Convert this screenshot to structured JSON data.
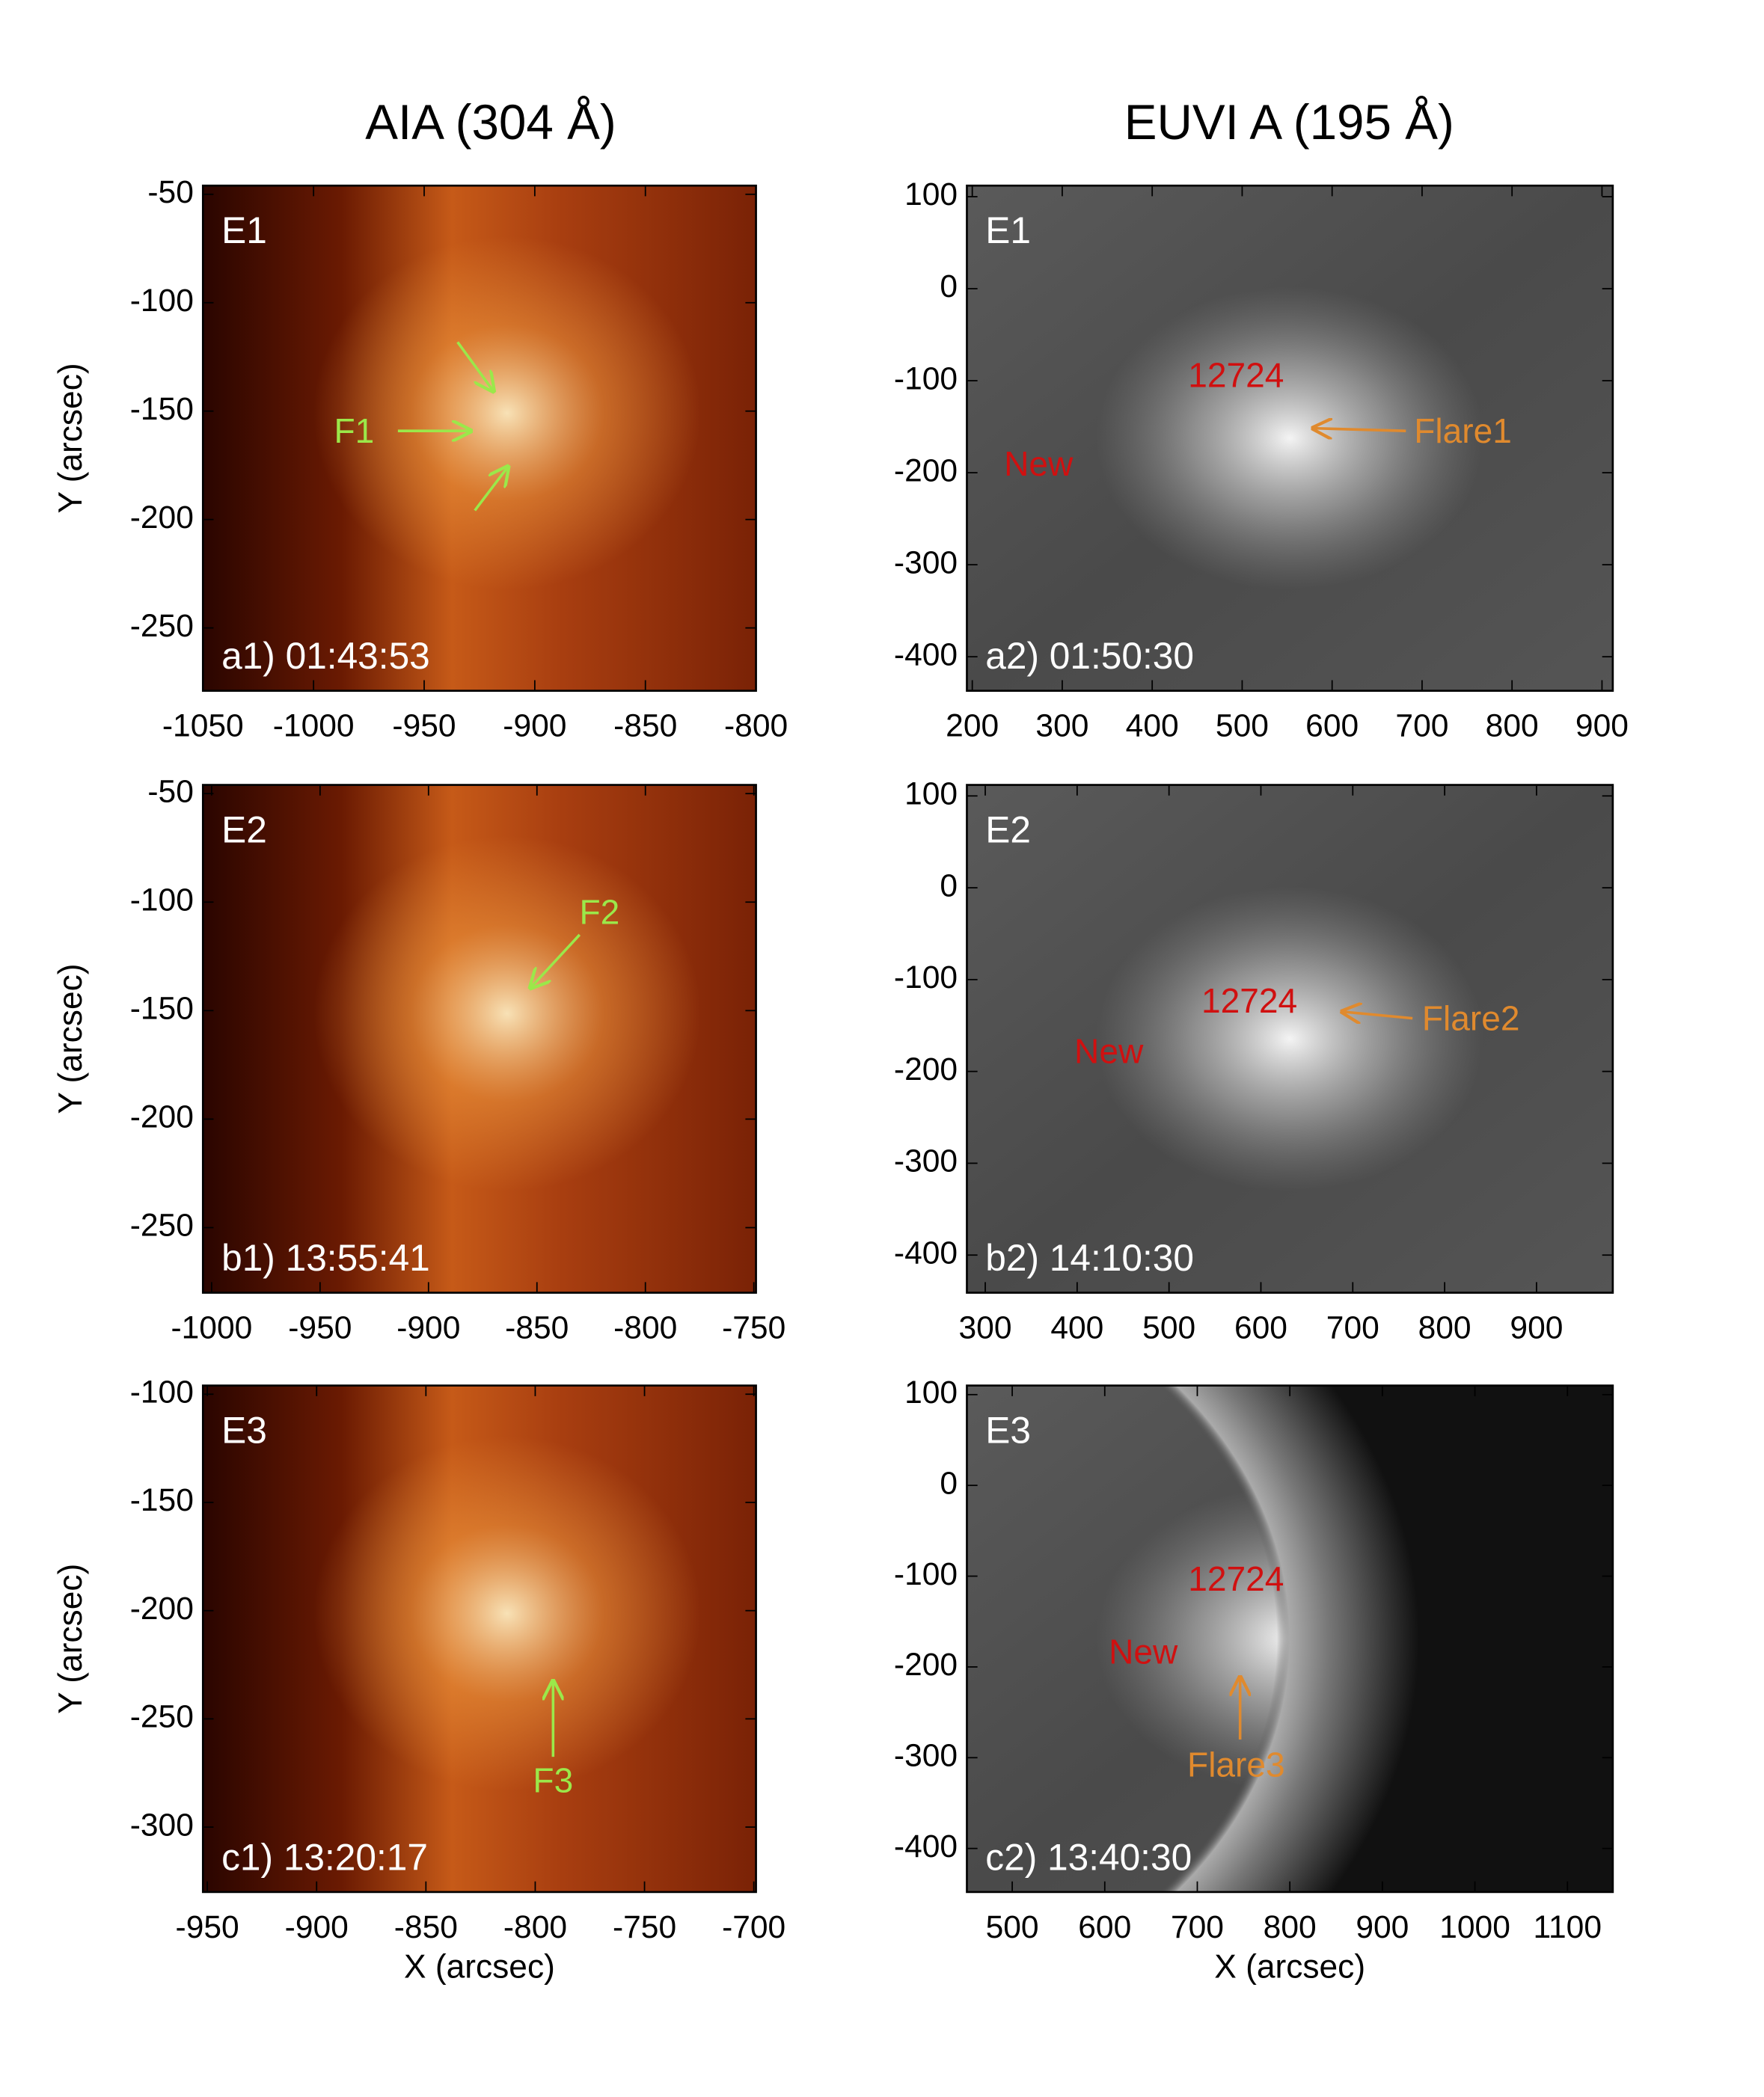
{
  "columns": [
    "AIA (304 Å)",
    "EUVI A (195 Å)"
  ],
  "panels": [
    {
      "event": "E1",
      "label": "a1) 01:43:53",
      "xlim": [
        -1050,
        -800
      ],
      "ylim": [
        -279,
        -46
      ],
      "xticks": [
        -1050,
        -1000,
        -950,
        -900,
        -850,
        -800
      ],
      "yticks": [
        -50,
        -100,
        -150,
        -200,
        -250
      ],
      "ylabel": "Y (arcsec)",
      "annotations": [
        "F1"
      ]
    },
    {
      "event": "E1",
      "label": "a2) 01:50:30",
      "xlim": [
        194,
        912
      ],
      "ylim": [
        -437,
        112
      ],
      "xticks": [
        200,
        300,
        400,
        500,
        600,
        700,
        800,
        900
      ],
      "yticks": [
        100,
        0,
        -100,
        -200,
        -300,
        -400
      ],
      "annotations": [
        "12724",
        "New",
        "Flare1"
      ]
    },
    {
      "event": "E2",
      "label": "b1) 13:55:41",
      "xlim": [
        -1004,
        -749
      ],
      "ylim": [
        -280,
        -46
      ],
      "xticks": [
        -1000,
        -950,
        -900,
        -850,
        -800,
        -750
      ],
      "yticks": [
        -50,
        -100,
        -150,
        -200,
        -250
      ],
      "ylabel": "Y (arcsec)",
      "annotations": [
        "F2"
      ]
    },
    {
      "event": "E2",
      "label": "b2) 14:10:30",
      "xlim": [
        280,
        983
      ],
      "ylim": [
        -441,
        112
      ],
      "xticks": [
        300,
        400,
        500,
        600,
        700,
        800,
        900
      ],
      "yticks": [
        100,
        0,
        -100,
        -200,
        -300,
        -400
      ],
      "annotations": [
        "12724",
        "New",
        "Flare2"
      ]
    },
    {
      "event": "E3",
      "label": "c1) 13:20:17",
      "xlim": [
        -952,
        -699
      ],
      "ylim": [
        -330,
        -96
      ],
      "xticks": [
        -950,
        -900,
        -850,
        -800,
        -750,
        -700
      ],
      "yticks": [
        -100,
        -150,
        -200,
        -250,
        -300
      ],
      "ylabel": "Y (arcsec)",
      "xlabel": "X (arcsec)",
      "annotations": [
        "F3"
      ]
    },
    {
      "event": "E3",
      "label": "c2) 13:40:30",
      "xlim": [
        451,
        1149
      ],
      "ylim": [
        -448,
        110
      ],
      "xticks": [
        500,
        600,
        700,
        800,
        900,
        1000,
        1100
      ],
      "yticks": [
        100,
        0,
        -100,
        -200,
        -300,
        -400
      ],
      "xlabel": "X (arcsec)",
      "annotations": [
        "12724",
        "New",
        "Flare3"
      ]
    }
  ]
}
